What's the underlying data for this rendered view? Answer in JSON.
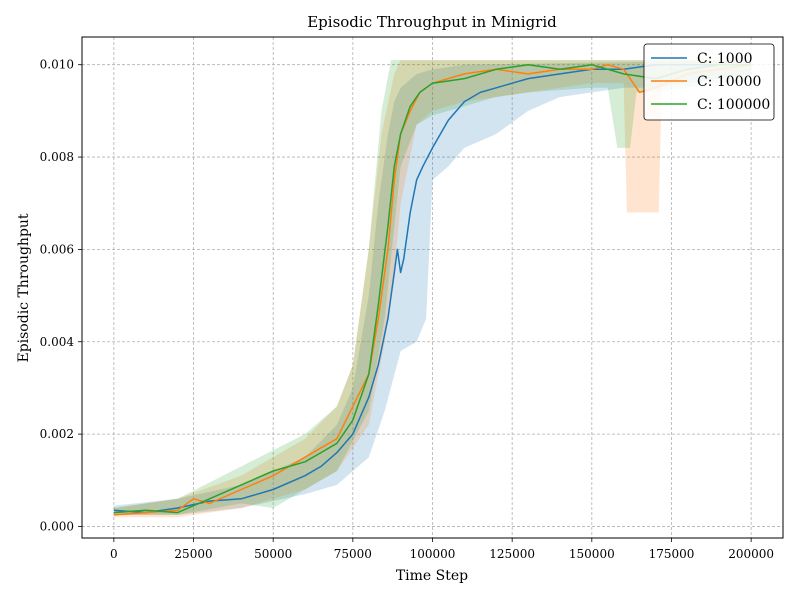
{
  "chart_data": {
    "type": "line",
    "title": "Episodic Throughput in Minigrid",
    "xlabel": "Time Step",
    "ylabel": "Episodic Throughput",
    "xlim": [
      -10000,
      210000
    ],
    "ylim": [
      -0.00025,
      0.0106
    ],
    "xticks": [
      0,
      25000,
      50000,
      75000,
      100000,
      125000,
      150000,
      175000,
      200000
    ],
    "xtick_labels": [
      "0",
      "25000",
      "50000",
      "75000",
      "100000",
      "125000",
      "150000",
      "175000",
      "200000"
    ],
    "yticks": [
      0.0,
      0.002,
      0.004,
      0.006,
      0.008,
      0.01
    ],
    "ytick_labels": [
      "0.000",
      "0.002",
      "0.004",
      "0.006",
      "0.008",
      "0.010"
    ],
    "grid": true,
    "legend_position": "top-right",
    "series": [
      {
        "name": "C: 1000",
        "color": "#1f77b4",
        "points": [
          [
            0,
            0.00035
          ],
          [
            10000,
            0.0003
          ],
          [
            20000,
            0.0004
          ],
          [
            30000,
            0.00055
          ],
          [
            40000,
            0.0006
          ],
          [
            50000,
            0.0008
          ],
          [
            60000,
            0.0011
          ],
          [
            65000,
            0.0013
          ],
          [
            70000,
            0.0016
          ],
          [
            75000,
            0.002
          ],
          [
            80000,
            0.0028
          ],
          [
            83000,
            0.0035
          ],
          [
            86000,
            0.0045
          ],
          [
            88000,
            0.0055
          ],
          [
            89000,
            0.006
          ],
          [
            90000,
            0.0055
          ],
          [
            91000,
            0.0058
          ],
          [
            93000,
            0.0068
          ],
          [
            95000,
            0.0075
          ],
          [
            97000,
            0.0078
          ],
          [
            100000,
            0.0082
          ],
          [
            105000,
            0.0088
          ],
          [
            110000,
            0.0092
          ],
          [
            115000,
            0.0094
          ],
          [
            120000,
            0.0095
          ],
          [
            125000,
            0.0096
          ],
          [
            130000,
            0.0097
          ],
          [
            140000,
            0.0098
          ],
          [
            150000,
            0.0099
          ],
          [
            160000,
            0.0099
          ],
          [
            170000,
            0.01
          ],
          [
            180000,
            0.01
          ],
          [
            190000,
            0.01
          ],
          [
            200000,
            0.01
          ]
        ],
        "lower": [
          [
            0,
            0.00025
          ],
          [
            20000,
            0.00025
          ],
          [
            40000,
            0.0004
          ],
          [
            60000,
            0.0007
          ],
          [
            70000,
            0.0009
          ],
          [
            80000,
            0.0015
          ],
          [
            85000,
            0.0025
          ],
          [
            90000,
            0.0038
          ],
          [
            95000,
            0.004
          ],
          [
            98000,
            0.0045
          ],
          [
            100000,
            0.0075
          ],
          [
            105000,
            0.0078
          ],
          [
            110000,
            0.0082
          ],
          [
            120000,
            0.0085
          ],
          [
            130000,
            0.009
          ],
          [
            140000,
            0.0093
          ],
          [
            150000,
            0.0094
          ],
          [
            160000,
            0.0095
          ],
          [
            170000,
            0.0095
          ],
          [
            180000,
            0.0096
          ],
          [
            190000,
            0.0097
          ],
          [
            200000,
            0.0098
          ]
        ],
        "upper": [
          [
            0,
            0.00045
          ],
          [
            20000,
            0.0006
          ],
          [
            40000,
            0.0009
          ],
          [
            60000,
            0.0015
          ],
          [
            70000,
            0.0022
          ],
          [
            75000,
            0.003
          ],
          [
            80000,
            0.005
          ],
          [
            83000,
            0.007
          ],
          [
            86000,
            0.0085
          ],
          [
            88000,
            0.0092
          ],
          [
            90000,
            0.0095
          ],
          [
            95000,
            0.0098
          ],
          [
            100000,
            0.0099
          ],
          [
            110000,
            0.01
          ],
          [
            200000,
            0.0101
          ]
        ]
      },
      {
        "name": "C: 10000",
        "color": "#ff7f0e",
        "points": [
          [
            0,
            0.00025
          ],
          [
            10000,
            0.0003
          ],
          [
            20000,
            0.00035
          ],
          [
            25000,
            0.0006
          ],
          [
            30000,
            0.0005
          ],
          [
            40000,
            0.0008
          ],
          [
            50000,
            0.0011
          ],
          [
            60000,
            0.0015
          ],
          [
            70000,
            0.0019
          ],
          [
            75000,
            0.0026
          ],
          [
            80000,
            0.0033
          ],
          [
            83000,
            0.0045
          ],
          [
            86000,
            0.006
          ],
          [
            88000,
            0.0075
          ],
          [
            90000,
            0.0085
          ],
          [
            93000,
            0.009
          ],
          [
            96000,
            0.0094
          ],
          [
            100000,
            0.0096
          ],
          [
            110000,
            0.0098
          ],
          [
            120000,
            0.0099
          ],
          [
            130000,
            0.0098
          ],
          [
            140000,
            0.0099
          ],
          [
            150000,
            0.0099
          ],
          [
            155000,
            0.01
          ],
          [
            160000,
            0.0099
          ],
          [
            162000,
            0.0097
          ],
          [
            165000,
            0.0094
          ],
          [
            170000,
            0.0095
          ],
          [
            180000,
            0.0098
          ],
          [
            190000,
            0.0099
          ],
          [
            200000,
            0.01
          ]
        ],
        "lower": [
          [
            0,
            0.0002
          ],
          [
            20000,
            0.0002
          ],
          [
            40000,
            0.0004
          ],
          [
            60000,
            0.0008
          ],
          [
            70000,
            0.0012
          ],
          [
            80000,
            0.0022
          ],
          [
            85000,
            0.004
          ],
          [
            88000,
            0.0055
          ],
          [
            90000,
            0.007
          ],
          [
            95000,
            0.0087
          ],
          [
            100000,
            0.009
          ],
          [
            110000,
            0.0092
          ],
          [
            120000,
            0.0093
          ],
          [
            130000,
            0.0094
          ],
          [
            150000,
            0.0096
          ],
          [
            160000,
            0.0096
          ],
          [
            161000,
            0.0068
          ],
          [
            171000,
            0.0068
          ],
          [
            172000,
            0.0097
          ],
          [
            200000,
            0.0098
          ]
        ],
        "upper": [
          [
            0,
            0.0004
          ],
          [
            20000,
            0.0006
          ],
          [
            40000,
            0.0011
          ],
          [
            60000,
            0.0019
          ],
          [
            70000,
            0.0026
          ],
          [
            75000,
            0.0035
          ],
          [
            80000,
            0.006
          ],
          [
            84000,
            0.0085
          ],
          [
            88000,
            0.0098
          ],
          [
            90000,
            0.0101
          ],
          [
            200000,
            0.0101
          ]
        ]
      },
      {
        "name": "C: 100000",
        "color": "#2ca02c",
        "points": [
          [
            0,
            0.0003
          ],
          [
            10000,
            0.00035
          ],
          [
            20000,
            0.0003
          ],
          [
            30000,
            0.0006
          ],
          [
            40000,
            0.0009
          ],
          [
            50000,
            0.0012
          ],
          [
            60000,
            0.0014
          ],
          [
            65000,
            0.0016
          ],
          [
            70000,
            0.0018
          ],
          [
            75000,
            0.0023
          ],
          [
            80000,
            0.0033
          ],
          [
            83000,
            0.0048
          ],
          [
            86000,
            0.0065
          ],
          [
            88000,
            0.0078
          ],
          [
            90000,
            0.0085
          ],
          [
            93000,
            0.0091
          ],
          [
            96000,
            0.0094
          ],
          [
            100000,
            0.0096
          ],
          [
            110000,
            0.0097
          ],
          [
            120000,
            0.0099
          ],
          [
            130000,
            0.01
          ],
          [
            140000,
            0.0099
          ],
          [
            150000,
            0.01
          ],
          [
            160000,
            0.0098
          ],
          [
            170000,
            0.0097
          ],
          [
            180000,
            0.0099
          ],
          [
            190000,
            0.01
          ],
          [
            200000,
            0.01
          ]
        ],
        "lower": [
          [
            0,
            0.00025
          ],
          [
            20000,
            0.00025
          ],
          [
            40000,
            0.0005
          ],
          [
            50000,
            0.0004
          ],
          [
            60000,
            0.0008
          ],
          [
            70000,
            0.0012
          ],
          [
            80000,
            0.0025
          ],
          [
            85000,
            0.0045
          ],
          [
            88000,
            0.0065
          ],
          [
            90000,
            0.0078
          ],
          [
            95000,
            0.0087
          ],
          [
            100000,
            0.0089
          ],
          [
            110000,
            0.0091
          ],
          [
            120000,
            0.0093
          ],
          [
            130000,
            0.0094
          ],
          [
            150000,
            0.0095
          ],
          [
            155000,
            0.0095
          ],
          [
            158000,
            0.0082
          ],
          [
            162000,
            0.0082
          ],
          [
            164000,
            0.0094
          ],
          [
            180000,
            0.0095
          ],
          [
            200000,
            0.0097
          ]
        ],
        "upper": [
          [
            0,
            0.0004
          ],
          [
            20000,
            0.0006
          ],
          [
            40000,
            0.0013
          ],
          [
            60000,
            0.002
          ],
          [
            70000,
            0.0026
          ],
          [
            75000,
            0.0035
          ],
          [
            80000,
            0.006
          ],
          [
            84000,
            0.009
          ],
          [
            87000,
            0.0101
          ],
          [
            200000,
            0.0101
          ]
        ]
      }
    ]
  }
}
